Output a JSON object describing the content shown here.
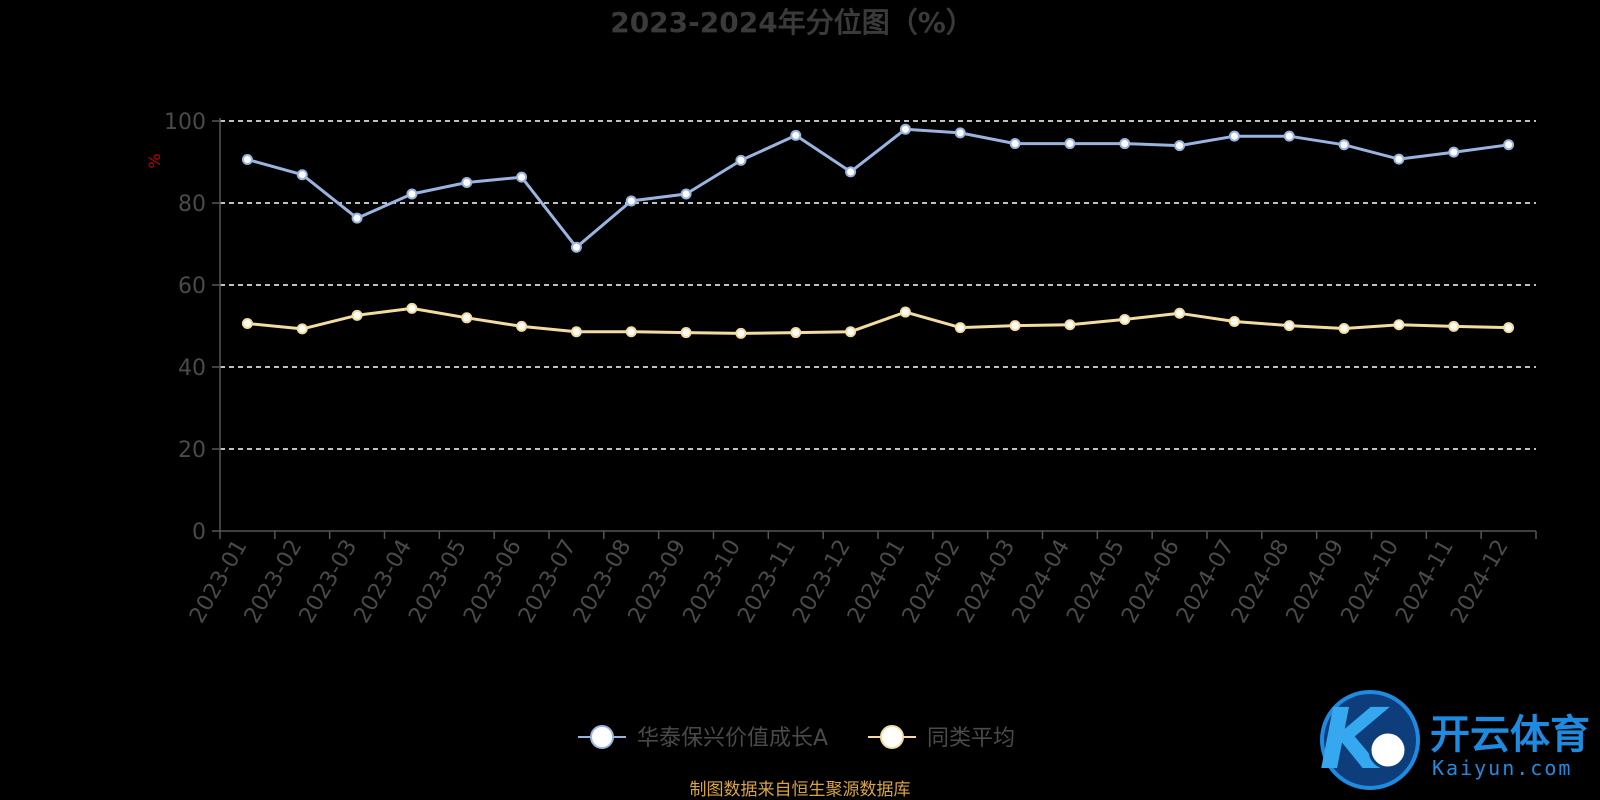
{
  "chart_data": {
    "type": "line",
    "title": "2023-2024年分位图（%）",
    "ylabel": "%",
    "ylim": [
      0,
      100
    ],
    "yticks": [
      "0",
      "20",
      "40",
      "60",
      "80",
      "100"
    ],
    "grid": true,
    "legend_position": "bottom-center",
    "categories": [
      "2023-01",
      "2023-02",
      "2023-03",
      "2023-04",
      "2023-05",
      "2023-06",
      "2023-07",
      "2023-08",
      "2023-09",
      "2023-10",
      "2023-11",
      "2023-12",
      "2024-01",
      "2024-02",
      "2024-03",
      "2024-04",
      "2024-05",
      "2024-06",
      "2024-07",
      "2024-08",
      "2024-09",
      "2024-10",
      "2024-11",
      "2024-12"
    ],
    "series": [
      {
        "name": "华泰保兴价值成长A",
        "color": "#9ab4e0",
        "values": [
          90.6,
          86.9,
          76.3,
          82.2,
          85.0,
          86.3,
          69.2,
          80.5,
          82.2,
          90.4,
          96.5,
          87.6,
          98.0,
          97.1,
          94.5,
          94.5,
          94.5,
          94.0,
          96.3,
          96.3,
          94.2,
          90.7,
          92.4,
          94.2
        ]
      },
      {
        "name": "同类平均",
        "color": "#f4dca0",
        "values": [
          50.6,
          49.3,
          52.6,
          54.3,
          52.0,
          49.9,
          48.6,
          48.6,
          48.4,
          48.2,
          48.4,
          48.6,
          53.4,
          49.6,
          50.1,
          50.3,
          51.6,
          53.1,
          51.1,
          50.1,
          49.4,
          50.3,
          49.9,
          49.6
        ]
      }
    ]
  },
  "footer": {
    "source": "制图数据来自恒生聚源数据库"
  },
  "watermark": {
    "brand": "开云体育",
    "url": "Kaiyun.com",
    "mark": "K"
  }
}
